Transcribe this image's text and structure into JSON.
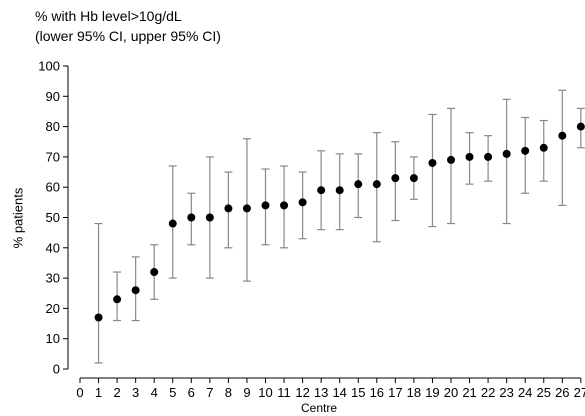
{
  "chart_data": {
    "type": "scatter",
    "title_lines": [
      "% with Hb level>10g/dL",
      "(lower 95% CI, upper 95% CI)"
    ],
    "xlabel": "Centre",
    "ylabel": "% patients",
    "xlim": [
      0,
      27
    ],
    "ylim": [
      0,
      100
    ],
    "x_ticks": [
      "0",
      "1",
      "2",
      "3",
      "4",
      "5",
      "6",
      "7",
      "8",
      "9",
      "10",
      "11",
      "12",
      "13",
      "14",
      "15",
      "16",
      "17",
      "18",
      "19",
      "20",
      "21",
      "22",
      "23",
      "24",
      "25",
      "26",
      "27"
    ],
    "y_ticks": [
      "0",
      "10",
      "20",
      "30",
      "40",
      "50",
      "60",
      "70",
      "80",
      "90",
      "100"
    ],
    "grid": false,
    "points": [
      {
        "x": 1,
        "y": 17,
        "lower": 2,
        "upper": 48
      },
      {
        "x": 2,
        "y": 23,
        "lower": 16,
        "upper": 32
      },
      {
        "x": 3,
        "y": 26,
        "lower": 16,
        "upper": 37
      },
      {
        "x": 4,
        "y": 32,
        "lower": 23,
        "upper": 41
      },
      {
        "x": 5,
        "y": 48,
        "lower": 30,
        "upper": 67
      },
      {
        "x": 6,
        "y": 50,
        "lower": 41,
        "upper": 58
      },
      {
        "x": 7,
        "y": 50,
        "lower": 30,
        "upper": 70
      },
      {
        "x": 8,
        "y": 53,
        "lower": 40,
        "upper": 65
      },
      {
        "x": 9,
        "y": 53,
        "lower": 29,
        "upper": 76
      },
      {
        "x": 10,
        "y": 54,
        "lower": 41,
        "upper": 66
      },
      {
        "x": 11,
        "y": 54,
        "lower": 40,
        "upper": 67
      },
      {
        "x": 12,
        "y": 55,
        "lower": 43,
        "upper": 65
      },
      {
        "x": 13,
        "y": 59,
        "lower": 46,
        "upper": 72
      },
      {
        "x": 14,
        "y": 59,
        "lower": 46,
        "upper": 71
      },
      {
        "x": 15,
        "y": 61,
        "lower": 50,
        "upper": 71
      },
      {
        "x": 16,
        "y": 61,
        "lower": 42,
        "upper": 78
      },
      {
        "x": 17,
        "y": 63,
        "lower": 49,
        "upper": 75
      },
      {
        "x": 18,
        "y": 63,
        "lower": 56,
        "upper": 70
      },
      {
        "x": 19,
        "y": 68,
        "lower": 47,
        "upper": 84
      },
      {
        "x": 20,
        "y": 69,
        "lower": 48,
        "upper": 86
      },
      {
        "x": 21,
        "y": 70,
        "lower": 61,
        "upper": 78
      },
      {
        "x": 22,
        "y": 70,
        "lower": 62,
        "upper": 77
      },
      {
        "x": 23,
        "y": 71,
        "lower": 48,
        "upper": 89
      },
      {
        "x": 24,
        "y": 72,
        "lower": 58,
        "upper": 83
      },
      {
        "x": 25,
        "y": 73,
        "lower": 62,
        "upper": 82
      },
      {
        "x": 26,
        "y": 77,
        "lower": 54,
        "upper": 92
      },
      {
        "x": 27,
        "y": 80,
        "lower": 73,
        "upper": 86
      }
    ],
    "colors": {
      "point": "#000000",
      "error_bar": "#888888",
      "axis": "#000000"
    }
  }
}
